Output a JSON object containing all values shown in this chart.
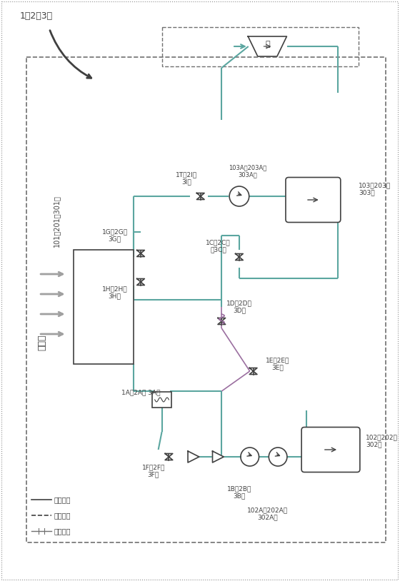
{
  "bg_color": "#ffffff",
  "line_color": "#404040",
  "teal_color": "#5ba6a0",
  "purple_color": "#9b6fa0",
  "title_label": "1（2、3）",
  "legend_items": [
    "重雷管道",
    "传第管道",
    "控制信号"
  ],
  "component_labels": {
    "solar": "太阳光",
    "collector": "101（201、301）",
    "valve_1G": "1G（2G、\n3G）",
    "valve_1H": "1H（2H、\n3H）",
    "valve_1T": "1T（2I、\n3I）",
    "pump_103A": "103A（203A、\n303A）",
    "tank_103": "103（203、\n303）",
    "valve_1C": "1C（2C、\n（3C）",
    "hx_1A": "1A（2A、 3A）",
    "valve_1F": "1F（2F、\n3F）",
    "pump_1B": "1B（2B、\n3B）",
    "pump_102A": "102A（202A、\n302A）",
    "tank_102": "102（202、\n302）",
    "valve_1D": "1D（2D、\n3D）",
    "valve_1E": "1E（2E、\n3E）",
    "expander": "中"
  }
}
